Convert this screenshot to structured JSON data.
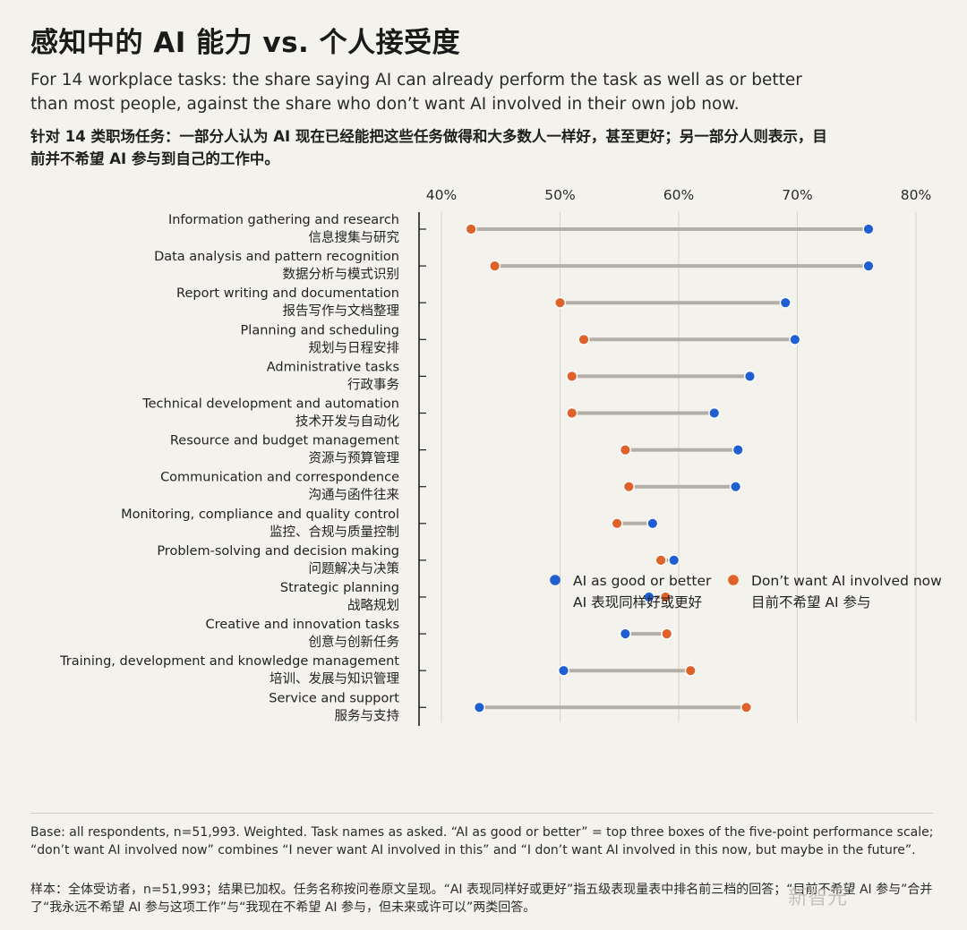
{
  "header": {
    "title": "感知中的 AI 能力 vs. 个人接受度",
    "subtitle_en": "For 14 workplace tasks: the share saying AI can already perform the task as well as or better than most people, against the share who don’t want AI involved in their own job now.",
    "subtitle_zh": "针对 14 类职场任务：一部分人认为 AI 现在已经能把这些任务做得和大多数人一样好，甚至更好；另一部分人则表示，目前并不希望 AI 参与到自己的工作中。"
  },
  "colors": {
    "background": "#f4f2ec",
    "ai_as_good": "#1f5fd1",
    "dont_want": "#e0622b",
    "connector": "#b3afa6",
    "grid": "#d6d3cb"
  },
  "chart_data": {
    "type": "dumbbell",
    "title": "感知中的 AI 能力 vs. 个人接受度",
    "xlim": [
      40,
      80
    ],
    "x_ticks": [
      40,
      50,
      60,
      70,
      80
    ],
    "x_tick_labels": [
      "40%",
      "50%",
      "60%",
      "70%",
      "80%"
    ],
    "grid": true,
    "legend_position": "bottom-right",
    "series": [
      {
        "key": "ai_as_good",
        "name": "AI as good or better",
        "name_zh": "AI 表现同样好或更好",
        "color": "#1f5fd1"
      },
      {
        "key": "dont_want",
        "name": "Don’t want AI involved now",
        "name_zh": "目前不希望 AI 参与",
        "color": "#e0622b"
      }
    ],
    "categories": [
      {
        "label_en": "Information gathering and research",
        "label_zh": "信息搜集与研究",
        "ai_as_good": 76,
        "dont_want": 42.5
      },
      {
        "label_en": "Data analysis and pattern recognition",
        "label_zh": "数据分析与模式识别",
        "ai_as_good": 76,
        "dont_want": 44.5
      },
      {
        "label_en": "Report writing and documentation",
        "label_zh": "报告写作与文档整理",
        "ai_as_good": 69,
        "dont_want": 50
      },
      {
        "label_en": "Planning and scheduling",
        "label_zh": "规划与日程安排",
        "ai_as_good": 69.8,
        "dont_want": 52
      },
      {
        "label_en": "Administrative tasks",
        "label_zh": "行政事务",
        "ai_as_good": 66,
        "dont_want": 51
      },
      {
        "label_en": "Technical development and automation",
        "label_zh": "技术开发与自动化",
        "ai_as_good": 63,
        "dont_want": 51
      },
      {
        "label_en": "Resource and budget management",
        "label_zh": "资源与预算管理",
        "ai_as_good": 65,
        "dont_want": 55.5
      },
      {
        "label_en": "Communication and correspondence",
        "label_zh": "沟通与函件往来",
        "ai_as_good": 64.8,
        "dont_want": 55.8
      },
      {
        "label_en": "Monitoring, compliance and quality control",
        "label_zh": "监控、合规与质量控制",
        "ai_as_good": 57.8,
        "dont_want": 54.8
      },
      {
        "label_en": "Problem-solving and decision making",
        "label_zh": "问题解决与决策",
        "ai_as_good": 59.6,
        "dont_want": 58.5
      },
      {
        "label_en": "Strategic planning",
        "label_zh": "战略规划",
        "ai_as_good": 57.5,
        "dont_want": 58.9
      },
      {
        "label_en": "Creative and innovation tasks",
        "label_zh": "创意与创新任务",
        "ai_as_good": 55.5,
        "dont_want": 59
      },
      {
        "label_en": "Training, development and knowledge management",
        "label_zh": "培训、发展与知识管理",
        "ai_as_good": 50.3,
        "dont_want": 61
      },
      {
        "label_en": "Service and support",
        "label_zh": "服务与支持",
        "ai_as_good": 43.2,
        "dont_want": 65.7
      }
    ]
  },
  "footer": {
    "note_en": "Base: all respondents, n=51,993. Weighted. Task names as asked. “AI as good or better” = top three boxes of the five-point performance scale; “don’t want AI involved now” combines “I never want AI involved in this” and “I don’t want AI involved in this now, but maybe in the future”.",
    "note_zh": "样本：全体受访者，n=51,993；结果已加权。任务名称按问卷原文呈现。“AI 表现同样好或更好”指五级表现量表中排名前三档的回答；“目前不希望 AI 参与”合并了“我永远不希望 AI 参与这项工作”与“我现在不希望 AI 参与，但未来或许可以”两类回答。",
    "watermark": "新智元"
  }
}
